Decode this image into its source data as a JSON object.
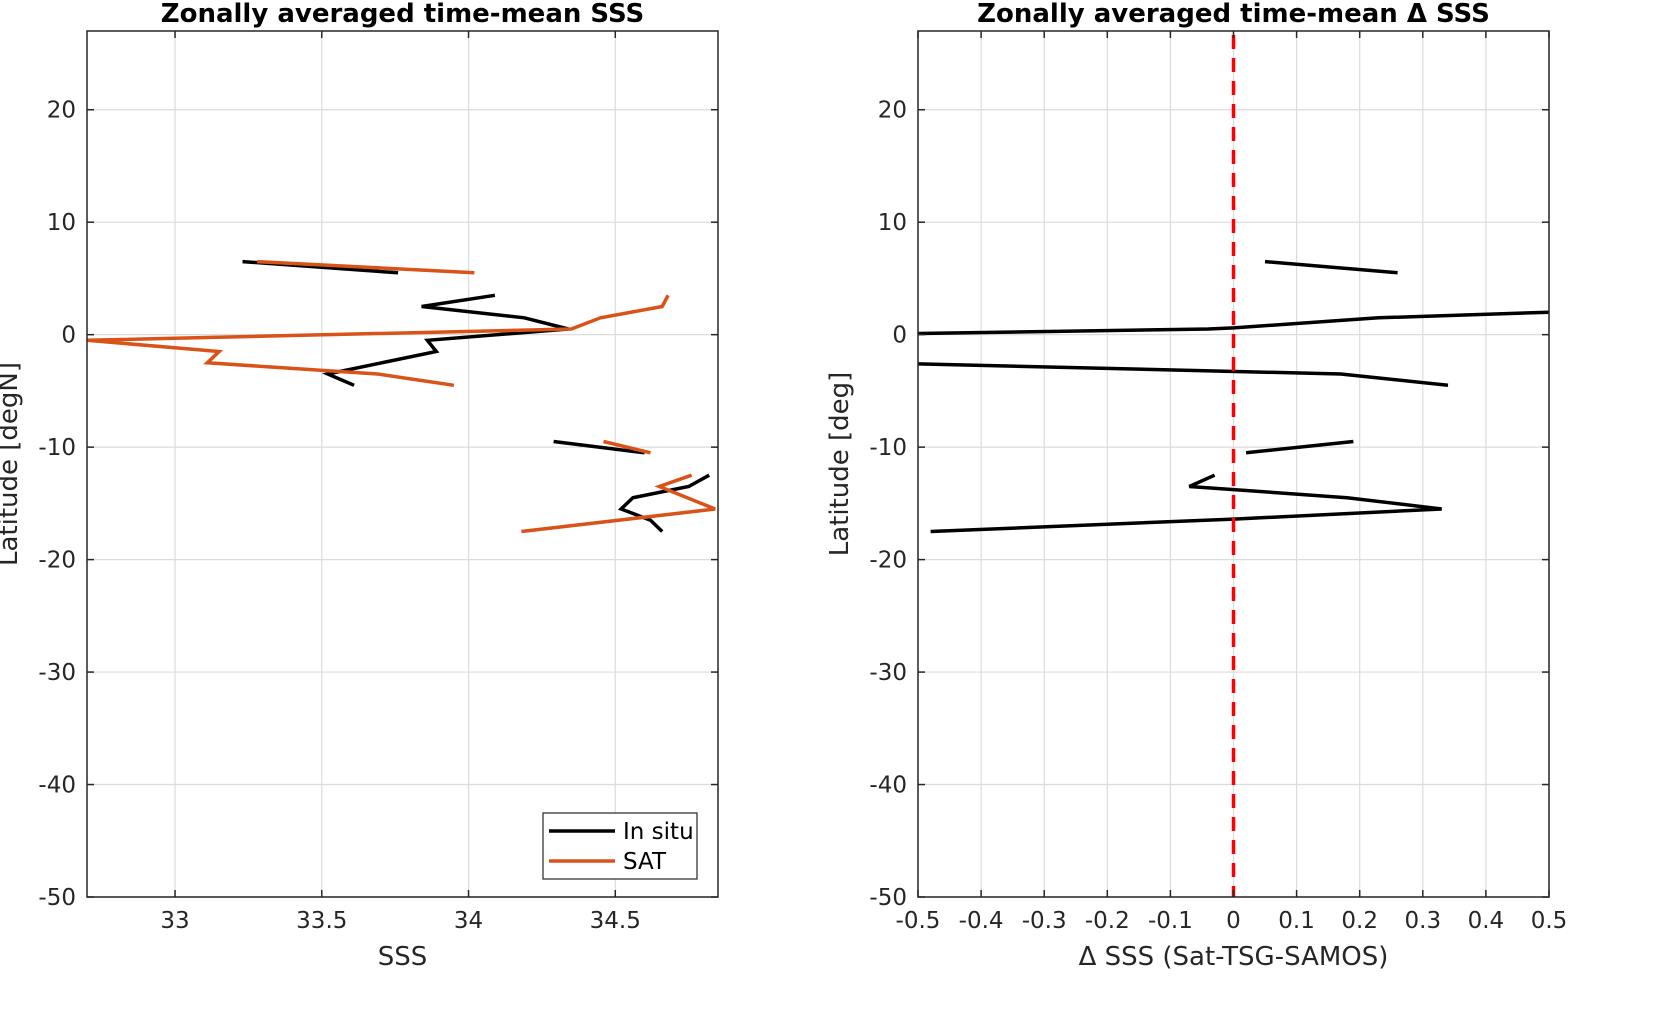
{
  "chart_data": [
    {
      "type": "line",
      "title": "Zonally averaged time-mean SSS",
      "xlabel": "SSS",
      "ylabel": "Latitude [degN]",
      "xlim": [
        32.7,
        34.85
      ],
      "ylim": [
        -50,
        27
      ],
      "xticks": [
        33,
        33.5,
        34,
        34.5
      ],
      "xtick_labels": [
        "33",
        "33.5",
        "34",
        "34.5"
      ],
      "yticks": [
        20,
        10,
        0,
        -10,
        -20,
        -30,
        -40,
        -50
      ],
      "ytick_labels": [
        "20",
        "10",
        "0",
        "-10",
        "-20",
        "-30",
        "-40",
        "-50"
      ],
      "grid": true,
      "legend": "bottom-right",
      "series": [
        {
          "name": "In situ",
          "color": "#000000",
          "segments": [
            [
              [
                33.23,
                6.5
              ],
              [
                33.76,
                5.5
              ]
            ],
            [
              [
                34.09,
                3.5
              ],
              [
                33.84,
                2.5
              ],
              [
                34.19,
                1.5
              ],
              [
                34.34,
                0.5
              ],
              [
                33.86,
                -0.5
              ],
              [
                33.89,
                -1.5
              ],
              [
                33.52,
                -3.5
              ],
              [
                33.61,
                -4.5
              ]
            ],
            [
              [
                34.29,
                -9.5
              ],
              [
                34.6,
                -10.5
              ]
            ],
            [
              [
                34.82,
                -12.5
              ],
              [
                34.75,
                -13.5
              ],
              [
                34.56,
                -14.5
              ],
              [
                34.52,
                -15.5
              ],
              [
                34.62,
                -16.5
              ],
              [
                34.66,
                -17.5
              ]
            ]
          ]
        },
        {
          "name": "SAT",
          "color": "#D95319",
          "segments": [
            [
              [
                33.28,
                6.5
              ],
              [
                34.02,
                5.5
              ]
            ],
            [
              [
                34.68,
                3.5
              ],
              [
                34.66,
                2.5
              ],
              [
                34.45,
                1.5
              ],
              [
                34.35,
                0.5
              ],
              [
                32.7,
                -0.5
              ],
              [
                33.15,
                -1.5
              ],
              [
                33.11,
                -2.5
              ],
              [
                33.69,
                -3.5
              ],
              [
                33.95,
                -4.5
              ]
            ],
            [
              [
                34.46,
                -9.5
              ],
              [
                34.62,
                -10.5
              ]
            ],
            [
              [
                34.76,
                -12.5
              ],
              [
                34.65,
                -13.5
              ],
              [
                34.84,
                -15.5
              ],
              [
                34.18,
                -17.5
              ]
            ]
          ]
        }
      ]
    },
    {
      "type": "line",
      "title": "Zonally averaged time-mean Δ SSS",
      "xlabel": "Δ SSS (Sat-TSG-SAMOS)",
      "ylabel": "Latitude [deg]",
      "xlim": [
        -0.5,
        0.5
      ],
      "ylim": [
        -50,
        27
      ],
      "xticks": [
        -0.5,
        -0.4,
        -0.3,
        -0.2,
        -0.1,
        0,
        0.1,
        0.2,
        0.3,
        0.4,
        0.5
      ],
      "xtick_labels": [
        "-0.5",
        "-0.4",
        "-0.3",
        "-0.2",
        "-0.1",
        "0",
        "0.1",
        "0.2",
        "0.3",
        "0.4",
        "0.5"
      ],
      "yticks": [
        20,
        10,
        0,
        -10,
        -20,
        -30,
        -40,
        -50
      ],
      "ytick_labels": [
        "20",
        "10",
        "0",
        "-10",
        "-20",
        "-30",
        "-40",
        "-50"
      ],
      "grid": true,
      "reference_line": {
        "x": 0,
        "color": "#FF0000",
        "style": "dashed"
      },
      "series": [
        {
          "color": "#000000",
          "segments": [
            [
              [
                0.05,
                6.5
              ],
              [
                0.26,
                5.5
              ]
            ],
            [
              [
                0.5,
                2.0
              ],
              [
                0.23,
                1.5
              ],
              [
                0.0,
                0.6
              ],
              [
                -0.04,
                0.5
              ],
              [
                -0.5,
                0.1
              ]
            ],
            [
              [
                -0.5,
                -2.6
              ],
              [
                0.17,
                -3.5
              ],
              [
                0.34,
                -4.5
              ]
            ],
            [
              [
                0.19,
                -9.5
              ],
              [
                0.02,
                -10.5
              ]
            ],
            [
              [
                -0.03,
                -12.5
              ],
              [
                -0.07,
                -13.5
              ],
              [
                0.18,
                -14.5
              ],
              [
                0.33,
                -15.5
              ],
              [
                0.0,
                -16.4
              ],
              [
                -0.48,
                -17.5
              ]
            ]
          ]
        }
      ]
    }
  ],
  "legend": {
    "items": [
      {
        "label": "In situ",
        "color": "#000000"
      },
      {
        "label": "SAT",
        "color": "#D95319"
      }
    ]
  }
}
